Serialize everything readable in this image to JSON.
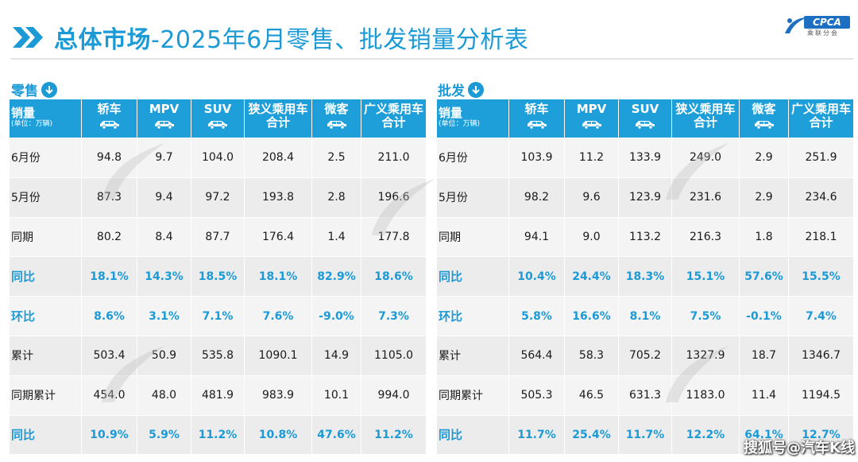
{
  "header": {
    "title_bold": "总体市场",
    "title_rest": "-2025年6月零售、批发销量分析表",
    "logo_text": "CPCA",
    "logo_sub": "乘联分会"
  },
  "tables": [
    {
      "title": "零售",
      "headers": {
        "first": "销量",
        "unit": "(单位：万辆)",
        "cols": [
          [
            "轿车"
          ],
          [
            "MPV"
          ],
          [
            "SUV"
          ],
          [
            "狭义乘用车",
            "合计"
          ],
          [
            "微客"
          ],
          [
            "广义乘用车",
            "合计"
          ]
        ]
      },
      "rows": [
        {
          "label": "6月份",
          "values": [
            "94.8",
            "9.7",
            "104.0",
            "208.4",
            "2.5",
            "211.0"
          ]
        },
        {
          "label": "5月份",
          "values": [
            "87.3",
            "9.4",
            "97.2",
            "193.8",
            "2.8",
            "196.6"
          ]
        },
        {
          "label": "同期",
          "values": [
            "80.2",
            "8.4",
            "87.7",
            "176.4",
            "1.4",
            "177.8"
          ]
        },
        {
          "label": "同比",
          "values": [
            "18.1%",
            "14.3%",
            "18.5%",
            "18.1%",
            "82.9%",
            "18.6%"
          ]
        },
        {
          "label": "环比",
          "values": [
            "8.6%",
            "3.1%",
            "7.1%",
            "7.6%",
            "-9.0%",
            "7.3%"
          ]
        },
        {
          "label": "累计",
          "values": [
            "503.4",
            "50.9",
            "535.8",
            "1090.1",
            "14.9",
            "1105.0"
          ]
        },
        {
          "label": "同期累计",
          "values": [
            "454.0",
            "48.0",
            "481.9",
            "983.9",
            "10.1",
            "994.0"
          ]
        },
        {
          "label": "同比",
          "values": [
            "10.9%",
            "5.9%",
            "11.2%",
            "10.8%",
            "47.6%",
            "11.2%"
          ]
        }
      ]
    },
    {
      "title": "批发",
      "headers": {
        "first": "销量",
        "unit": "(单位：万辆)",
        "cols": [
          [
            "轿车"
          ],
          [
            "MPV"
          ],
          [
            "SUV"
          ],
          [
            "狭义乘用车",
            "合计"
          ],
          [
            "微客"
          ],
          [
            "广义乘用车",
            "合计"
          ]
        ]
      },
      "rows": [
        {
          "label": "6月份",
          "values": [
            "103.9",
            "11.2",
            "133.9",
            "249.0",
            "2.9",
            "251.9"
          ]
        },
        {
          "label": "5月份",
          "values": [
            "98.2",
            "9.6",
            "123.9",
            "231.6",
            "2.9",
            "234.6"
          ]
        },
        {
          "label": "同期",
          "values": [
            "94.1",
            "9.0",
            "113.2",
            "216.3",
            "1.8",
            "218.1"
          ]
        },
        {
          "label": "同比",
          "values": [
            "10.4%",
            "24.4%",
            "18.3%",
            "15.1%",
            "57.6%",
            "15.5%"
          ]
        },
        {
          "label": "环比",
          "values": [
            "5.8%",
            "16.6%",
            "8.1%",
            "7.5%",
            "-0.1%",
            "7.4%"
          ]
        },
        {
          "label": "累计",
          "values": [
            "564.4",
            "58.3",
            "705.2",
            "1327.9",
            "18.7",
            "1346.7"
          ]
        },
        {
          "label": "同期累计",
          "values": [
            "505.3",
            "46.5",
            "631.3",
            "1183.0",
            "11.4",
            "1194.5"
          ]
        },
        {
          "label": "同比",
          "values": [
            "11.7%",
            "25.4%",
            "11.7%",
            "12.2%",
            "64.1%",
            "12.7%"
          ]
        }
      ]
    }
  ],
  "pct_rows": [
    3,
    4,
    7
  ],
  "icon_cols": [
    0,
    1,
    2,
    4
  ],
  "colors": {
    "accent": "#1c9ad6",
    "header_bg": "#1f9fd9"
  },
  "footer": {
    "source_watermark": "搜狐号@汽车K线"
  }
}
